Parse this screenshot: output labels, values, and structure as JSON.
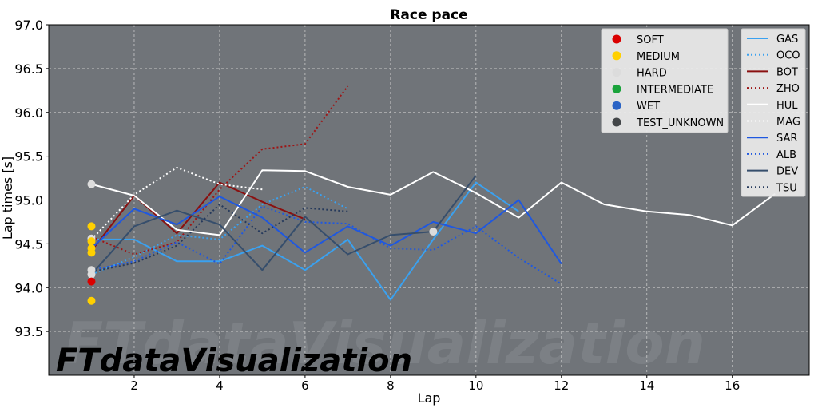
{
  "chart_data": {
    "type": "line",
    "title": "Race pace",
    "xlabel": "Lap",
    "ylabel": "Lap times [s]",
    "xlim": [
      0,
      17.8
    ],
    "ylim": [
      93.0,
      97.0
    ],
    "xticks": [
      2,
      4,
      6,
      8,
      10,
      12,
      14,
      16
    ],
    "yticks": [
      93.5,
      94.0,
      94.5,
      95.0,
      95.5,
      96.0,
      96.5,
      97.0
    ],
    "grid": true,
    "background": "#707479",
    "legend_compounds_position": "top-right",
    "legend_drivers_position": "right",
    "watermark": "FTdataVisualization",
    "compound_legend": [
      {
        "label": "SOFT",
        "color": "#da0000"
      },
      {
        "label": "MEDIUM",
        "color": "#ffd000"
      },
      {
        "label": "HARD",
        "color": "#dcdcdc"
      },
      {
        "label": "INTERMEDIATE",
        "color": "#1aa33b"
      },
      {
        "label": "WET",
        "color": "#2a63c5"
      },
      {
        "label": "TEST_UNKNOWN",
        "color": "#434649"
      }
    ],
    "series": [
      {
        "name": "GAS",
        "color": "#3aa1f0",
        "style": "solid",
        "x": [
          1,
          2,
          3,
          4,
          5,
          6,
          7,
          8,
          9,
          10,
          11
        ],
        "y": [
          94.55,
          94.55,
          94.3,
          94.3,
          94.48,
          94.2,
          94.55,
          93.86,
          94.55,
          95.2,
          94.87
        ]
      },
      {
        "name": "OCO",
        "color": "#3aa1f0",
        "style": "dotted",
        "x": [
          1,
          2,
          3,
          4,
          5,
          6,
          7
        ],
        "y": [
          94.15,
          94.35,
          94.6,
          94.55,
          94.95,
          95.15,
          94.9
        ]
      },
      {
        "name": "BOT",
        "color": "#8a1010",
        "style": "solid",
        "x": [
          1,
          2,
          3,
          4,
          5,
          6
        ],
        "y": [
          94.42,
          95.05,
          94.62,
          95.2,
          94.98,
          94.78
        ]
      },
      {
        "name": "ZHO",
        "color": "#9e1515",
        "style": "dotted",
        "x": [
          1,
          2,
          3,
          4,
          5,
          6,
          7
        ],
        "y": [
          94.58,
          94.38,
          94.52,
          95.12,
          95.58,
          95.64,
          96.3
        ]
      },
      {
        "name": "HUL",
        "color": "#ffffff",
        "style": "solid",
        "x": [
          1,
          2,
          3,
          4,
          5,
          6,
          7,
          8,
          9,
          10,
          11,
          12,
          13,
          14,
          15,
          16,
          17
        ],
        "y": [
          95.18,
          95.05,
          94.66,
          94.6,
          95.34,
          95.33,
          95.15,
          95.06,
          95.32,
          95.08,
          94.8,
          95.2,
          94.95,
          94.87,
          94.83,
          94.71,
          95.07
        ]
      },
      {
        "name": "MAG",
        "color": "#ffffff",
        "style": "dotted",
        "x": [
          1,
          2,
          3,
          4,
          5
        ],
        "y": [
          94.55,
          95.06,
          95.37,
          95.18,
          95.12
        ]
      },
      {
        "name": "SAR",
        "color": "#1f58e0",
        "style": "solid",
        "x": [
          1,
          2,
          3,
          4,
          5,
          6,
          7,
          8,
          9,
          10,
          11,
          12
        ],
        "y": [
          94.45,
          94.9,
          94.72,
          95.04,
          94.8,
          94.4,
          94.7,
          94.48,
          94.75,
          94.62,
          95.0,
          94.27
        ]
      },
      {
        "name": "ALB",
        "color": "#1f58e0",
        "style": "dotted",
        "x": [
          1,
          2,
          3,
          4,
          5,
          6,
          7,
          8,
          9,
          10,
          11,
          12
        ],
        "y": [
          94.2,
          94.3,
          94.52,
          94.27,
          94.93,
          94.75,
          94.73,
          94.45,
          94.43,
          94.7,
          94.34,
          94.04
        ]
      },
      {
        "name": "DEV",
        "color": "#364e6c",
        "style": "solid",
        "x": [
          1,
          2,
          3,
          4,
          5,
          6,
          7,
          8,
          9,
          10
        ],
        "y": [
          94.15,
          94.7,
          94.88,
          94.72,
          94.2,
          94.81,
          94.38,
          94.6,
          94.64,
          95.28
        ]
      },
      {
        "name": "TSU",
        "color": "#263a5c",
        "style": "dotted",
        "x": [
          1,
          2,
          3,
          4,
          5,
          6,
          7
        ],
        "y": [
          94.18,
          94.28,
          94.48,
          94.95,
          94.62,
          94.91,
          94.87
        ]
      }
    ],
    "compound_points": [
      {
        "x": 1,
        "y": 95.18,
        "compound": "HARD"
      },
      {
        "x": 1,
        "y": 94.7,
        "compound": "MEDIUM"
      },
      {
        "x": 1,
        "y": 94.56,
        "compound": "HARD"
      },
      {
        "x": 1,
        "y": 94.53,
        "compound": "MEDIUM"
      },
      {
        "x": 1,
        "y": 94.45,
        "compound": "MEDIUM"
      },
      {
        "x": 1,
        "y": 94.4,
        "compound": "MEDIUM"
      },
      {
        "x": 1,
        "y": 94.2,
        "compound": "HARD"
      },
      {
        "x": 1,
        "y": 94.15,
        "compound": "HARD"
      },
      {
        "x": 1,
        "y": 94.07,
        "compound": "SOFT"
      },
      {
        "x": 1,
        "y": 93.85,
        "compound": "MEDIUM"
      },
      {
        "x": 9,
        "y": 94.64,
        "compound": "HARD"
      }
    ]
  }
}
